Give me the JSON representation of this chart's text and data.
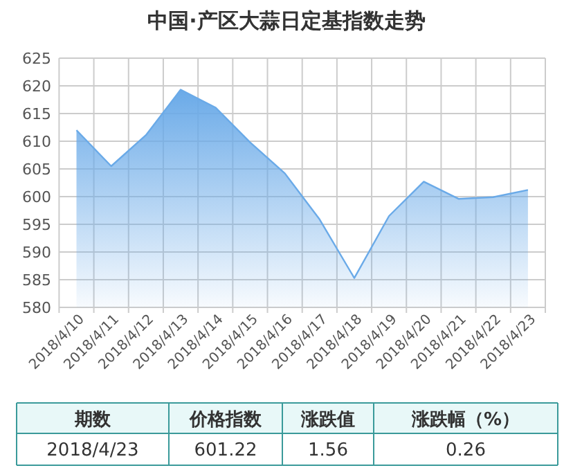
{
  "chart_data": [
    {
      "type": "area",
      "title": "中国·产区大蒜日定基指数走势",
      "categories": [
        "2018/4/10",
        "2018/4/11",
        "2018/4/12",
        "2018/4/13",
        "2018/4/14",
        "2018/4/15",
        "2018/4/16",
        "2018/4/17",
        "2018/4/18",
        "2018/4/19",
        "2018/4/20",
        "2018/4/21",
        "2018/4/22",
        "2018/4/23"
      ],
      "values": [
        612.0,
        605.5,
        611.1,
        619.3,
        616.1,
        609.8,
        604.2,
        595.9,
        585.3,
        596.5,
        602.7,
        599.6,
        599.9,
        601.2
      ],
      "color": "#6aaae8",
      "ylim": [
        580,
        625
      ],
      "yticks": [
        580,
        585,
        590,
        595,
        600,
        605,
        610,
        615,
        620,
        625
      ],
      "grid": true
    },
    {
      "type": "other",
      "categories": [
        "期数",
        "价格指数",
        "涨跌值",
        "涨跌幅（%）"
      ],
      "value_labels": [
        "2018/4/23",
        "601.22",
        "1.56",
        "0.26"
      ]
    }
  ]
}
